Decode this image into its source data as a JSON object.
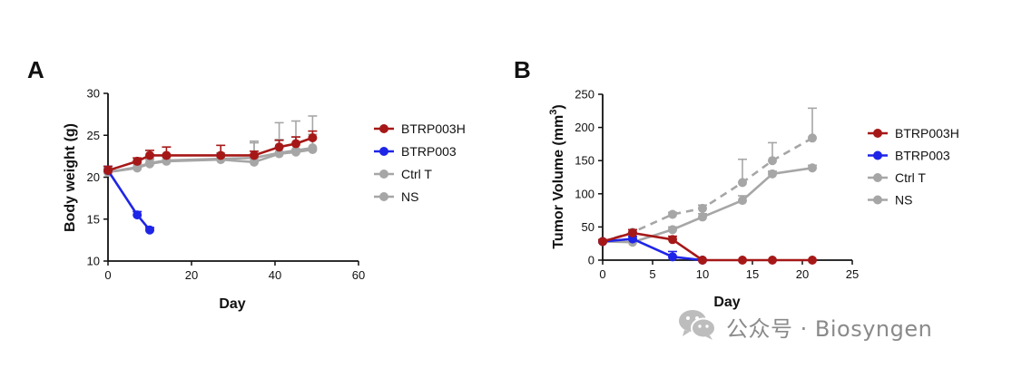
{
  "colors": {
    "BTRP003H": "#a61818",
    "BTRP003": "#1f25e6",
    "Ctrl T": "#a6a6a6",
    "NS": "#a6a6a6"
  },
  "chart_data": [
    {
      "panel": "A",
      "type": "line",
      "title": "",
      "xlabel": "Day",
      "ylabel": "Body weight (g)",
      "xlim": [
        0,
        60
      ],
      "ylim": [
        10,
        30
      ],
      "xticks": [
        "0",
        "20",
        "40",
        "60"
      ],
      "yticks": [
        "10",
        "15",
        "20",
        "25",
        "30"
      ],
      "grid": false,
      "legend_position": "right",
      "series": [
        {
          "name": "NS",
          "style": "solid",
          "x": [
            0,
            7,
            10,
            14,
            27,
            35,
            41,
            45,
            49
          ],
          "y": [
            20.6,
            21.1,
            21.6,
            21.9,
            22.1,
            21.8,
            22.8,
            23.0,
            23.3
          ],
          "err": [
            0.5,
            0.5,
            0.5,
            0.5,
            0.5,
            2.5,
            3.7,
            3.7,
            4.0
          ]
        },
        {
          "name": "Ctrl T",
          "style": "solid",
          "x": [
            0,
            7,
            10,
            14,
            27,
            35,
            41,
            45,
            49
          ],
          "y": [
            20.6,
            21.2,
            21.7,
            22.0,
            22.2,
            22.3,
            22.9,
            23.2,
            23.5
          ],
          "err": [
            0.4,
            0.5,
            0.5,
            0.6,
            0.7,
            1.8,
            1.6,
            1.6,
            1.6
          ]
        },
        {
          "name": "BTRP003H",
          "style": "solid",
          "x": [
            0,
            7,
            10,
            14,
            27,
            35,
            41,
            45,
            49
          ],
          "y": [
            20.8,
            21.9,
            22.6,
            22.6,
            22.6,
            22.6,
            23.6,
            24.0,
            24.7
          ],
          "err": [
            0.5,
            0.4,
            0.6,
            1.0,
            1.2,
            0.5,
            0.8,
            0.8,
            0.8
          ]
        },
        {
          "name": "BTRP003",
          "style": "solid",
          "x": [
            0,
            7,
            10
          ],
          "y": [
            20.8,
            15.5,
            13.7
          ],
          "err": [
            0.5,
            0.4,
            0.3
          ]
        }
      ]
    },
    {
      "panel": "B",
      "type": "line",
      "title": "",
      "xlabel": "Day",
      "ylabel": "Tumor Volume (mm³)",
      "ylabel_base": "Tumor Volume (mm",
      "ylabel_sup": "3",
      "ylabel_close": ")",
      "xlim": [
        0,
        25
      ],
      "ylim": [
        0,
        250
      ],
      "xticks": [
        "0",
        "5",
        "10",
        "15",
        "20",
        "25"
      ],
      "yticks": [
        "0",
        "50",
        "100",
        "150",
        "200",
        "250"
      ],
      "grid": false,
      "legend_position": "right",
      "series": [
        {
          "name": "NS",
          "style": "dashed",
          "x": [
            0,
            3,
            7,
            10,
            14,
            17,
            21
          ],
          "y": [
            28,
            42,
            69,
            78,
            117,
            150,
            184
          ],
          "err": [
            3,
            4,
            3,
            5,
            35,
            27,
            45
          ]
        },
        {
          "name": "Ctrl T",
          "style": "solid",
          "x": [
            0,
            3,
            7,
            10,
            14,
            17,
            21
          ],
          "y": [
            28,
            27,
            46,
            65,
            90,
            130,
            139
          ],
          "err": [
            3,
            3,
            4,
            5,
            7,
            4,
            4
          ]
        },
        {
          "name": "BTRP003",
          "style": "solid",
          "x": [
            0,
            3,
            7,
            10
          ],
          "y": [
            28,
            32,
            5,
            0
          ],
          "err": [
            3,
            4,
            8,
            0
          ]
        },
        {
          "name": "BTRP003H",
          "style": "solid",
          "x": [
            0,
            3,
            7,
            10,
            14,
            17,
            21
          ],
          "y": [
            28,
            41,
            31,
            0,
            0,
            0,
            0
          ],
          "err": [
            3,
            5,
            5,
            0,
            0,
            0,
            0
          ]
        }
      ]
    }
  ],
  "legends": [
    {
      "panel": "A",
      "items": [
        "BTRP003H",
        "BTRP003",
        "Ctrl T",
        "NS"
      ]
    },
    {
      "panel": "B",
      "items": [
        "BTRP003H",
        "BTRP003",
        "Ctrl T",
        "NS"
      ]
    }
  ],
  "watermark": {
    "text": "公众号 · Biosyngen",
    "icon": "wechat-icon"
  }
}
